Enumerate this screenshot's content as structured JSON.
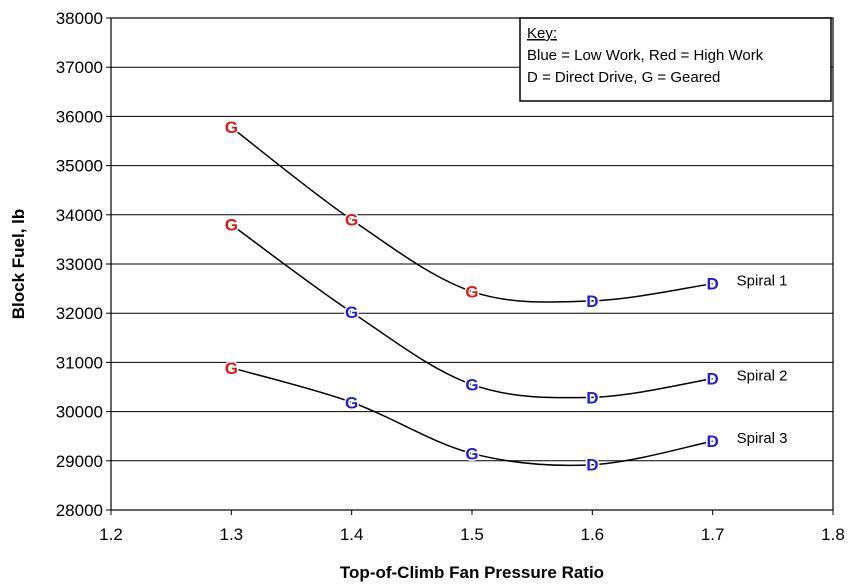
{
  "chart_data": {
    "type": "line",
    "xlabel": "Top-of-Climb Fan Pressure Ratio",
    "ylabel": "Block Fuel, lb",
    "xlim": [
      1.2,
      1.8
    ],
    "ylim": [
      28000,
      38000
    ],
    "x_ticks": [
      "1.2",
      "1.3",
      "1.4",
      "1.5",
      "1.6",
      "1.7",
      "1.8"
    ],
    "y_ticks": [
      "28000",
      "29000",
      "30000",
      "31000",
      "32000",
      "33000",
      "34000",
      "35000",
      "36000",
      "37000",
      "38000"
    ],
    "grid": "horizontal",
    "colors": {
      "low_work": "#1f1fd6",
      "high_work": "#e01818",
      "line": "#000000"
    },
    "series": [
      {
        "name": "Spiral 1",
        "points": [
          {
            "x": 1.3,
            "y": 35780,
            "marker": "G",
            "work": "high"
          },
          {
            "x": 1.4,
            "y": 33900,
            "marker": "G",
            "work": "high"
          },
          {
            "x": 1.5,
            "y": 32440,
            "marker": "G",
            "work": "high"
          },
          {
            "x": 1.6,
            "y": 32250,
            "marker": "D",
            "work": "low"
          },
          {
            "x": 1.7,
            "y": 32600,
            "marker": "D",
            "work": "low"
          }
        ]
      },
      {
        "name": "Spiral 2",
        "points": [
          {
            "x": 1.3,
            "y": 33800,
            "marker": "G",
            "work": "high"
          },
          {
            "x": 1.4,
            "y": 32020,
            "marker": "G",
            "work": "low"
          },
          {
            "x": 1.5,
            "y": 30550,
            "marker": "G",
            "work": "low"
          },
          {
            "x": 1.6,
            "y": 30290,
            "marker": "D",
            "work": "low"
          },
          {
            "x": 1.7,
            "y": 30670,
            "marker": "D",
            "work": "low"
          }
        ]
      },
      {
        "name": "Spiral 3",
        "points": [
          {
            "x": 1.3,
            "y": 30890,
            "marker": "G",
            "work": "high"
          },
          {
            "x": 1.4,
            "y": 30190,
            "marker": "G",
            "work": "low"
          },
          {
            "x": 1.5,
            "y": 29150,
            "marker": "G",
            "work": "low"
          },
          {
            "x": 1.6,
            "y": 28920,
            "marker": "D",
            "work": "low"
          },
          {
            "x": 1.7,
            "y": 29400,
            "marker": "D",
            "work": "low"
          }
        ]
      }
    ],
    "key": {
      "title": "Key:",
      "lines": [
        "Blue = Low Work, Red = High Work",
        "D = Direct Drive, G = Geared"
      ],
      "placement": "top-right"
    }
  }
}
